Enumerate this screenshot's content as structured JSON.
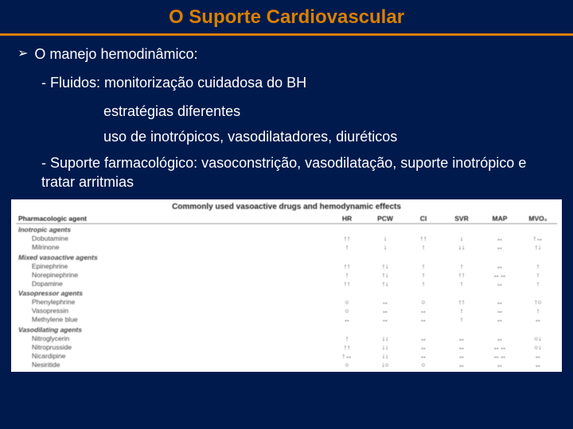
{
  "title": "O Suporte Cardiovascular",
  "bullet": "O manejo hemodinâmico:",
  "sub1": "- Fluidos: monitorização cuidadosa do BH",
  "sub2a": "estratégias diferentes",
  "sub2b": "uso de inotrópicos, vasodilatadores, diuréticos",
  "sub3": "- Suporte farmacológico: vasoconstrição, vasodilatação, suporte inotrópico e tratar arritmias",
  "table": {
    "title": "Commonly used vasoactive drugs and hemodynamic effects",
    "columns": [
      "Pharmacologic agent",
      "HR",
      "PCW",
      "CI",
      "SVR",
      "MAP",
      "MVO₂"
    ],
    "sections": [
      {
        "name": "Inotropic agents",
        "rows": [
          [
            "Dobutamine",
            "↑↑",
            "↓",
            "↑↑",
            "↓",
            "↔",
            "↑↔"
          ],
          [
            "Milrinone",
            "↑",
            "↓",
            "↑",
            "↓↓",
            "↔",
            "↑↓"
          ]
        ]
      },
      {
        "name": "Mixed vasoactive agents",
        "rows": [
          [
            "Epinephrine",
            "↑↑",
            "↑↓",
            "↑",
            "↑",
            "↔",
            "↑"
          ],
          [
            "Norepinephrine",
            "↑",
            "↑↓",
            "↑",
            "↑↑",
            "↔↔",
            "↑"
          ],
          [
            "Dopamine",
            "↑↑",
            "↑↓",
            "↑",
            "↑",
            "↔",
            "↑"
          ]
        ]
      },
      {
        "name": "Vasopressor agents",
        "rows": [
          [
            "Phenylephrine",
            "○",
            "↔",
            "○",
            "↑↑",
            "↔",
            "↑○"
          ],
          [
            "Vasopressin",
            "○",
            "↔",
            "↔",
            "↑",
            "↔",
            "↑"
          ],
          [
            "Methylene blue",
            "↔",
            "↔",
            "↔",
            "↑",
            "↔",
            "↔"
          ]
        ]
      },
      {
        "name": "Vasodilating agents",
        "rows": [
          [
            "Nitroglycerin",
            "↑",
            "↓↓",
            "↔",
            "↔",
            "↔",
            "○↓"
          ],
          [
            "Nitroprusside",
            "↑↑",
            "↓↓",
            "↔",
            "↔",
            "↔↔",
            "○↓"
          ],
          [
            "Nicardipine",
            "↑↔",
            "↓↓",
            "↔",
            "↔",
            "↔↔",
            "↔"
          ],
          [
            "Nesiritide",
            "○",
            "↓○",
            "○",
            "↔",
            "↔",
            "↔"
          ]
        ]
      }
    ]
  }
}
